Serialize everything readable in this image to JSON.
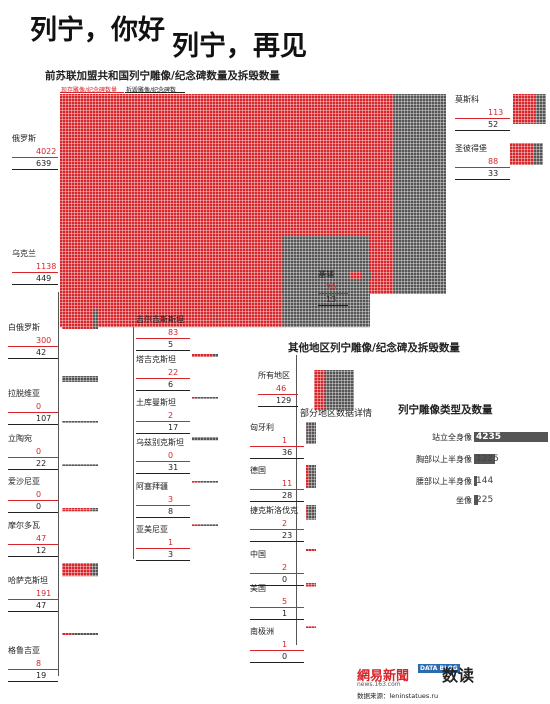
{
  "title": {
    "part1": "列宁，你好",
    "part2": "列宁，再见"
  },
  "section1": {
    "title": "前苏联加盟共和国列宁雕像/纪念碑数量及拆毁数量",
    "legend_present": "现存雕像/纪念碑数量",
    "legend_demolished": "拆毁雕像/纪念碑数",
    "colors": {
      "present": "#d6262b",
      "demolished": "#555555"
    }
  },
  "section2": {
    "title": "其他地区列宁雕像/纪念碑及拆毁数量",
    "detail_title": "部分地区数据详情"
  },
  "section3": {
    "title": "列宁雕像类型及数量"
  },
  "chart_data": [
    {
      "type": "bar",
      "title": "前苏联加盟共和国列宁雕像/纪念碑数量及拆毁数量",
      "series": [
        {
          "name": "现存雕像/纪念碑数量",
          "color": "#d6262b",
          "values": [
            4022,
            1138,
            300,
            0,
            0,
            0,
            47,
            191,
            8,
            83,
            22,
            2,
            0,
            3,
            1
          ]
        },
        {
          "name": "拆毁雕像/纪念碑数",
          "color": "#555555",
          "values": [
            639,
            449,
            42,
            107,
            22,
            0,
            12,
            47,
            19,
            5,
            6,
            17,
            31,
            8,
            3
          ]
        }
      ],
      "categories": [
        "俄罗斯",
        "乌克兰",
        "白俄罗斯",
        "拉脱维亚",
        "立陶宛",
        "爱沙尼亚",
        "摩尔多瓦",
        "哈萨克斯坦",
        "格鲁吉亚",
        "吉尔吉斯斯坦",
        "塔吉克斯坦",
        "土库曼斯坦",
        "乌兹别克斯坦",
        "阿塞拜疆",
        "亚美尼亚"
      ],
      "cities": [
        {
          "name": "莫斯科",
          "present": 113,
          "demolished": 52
        },
        {
          "name": "圣彼得堡",
          "present": 88,
          "demolished": 33
        },
        {
          "name": "基辅",
          "present": 20,
          "demolished": 13
        }
      ]
    },
    {
      "type": "bar",
      "title": "其他地区列宁雕像/纪念碑及拆毁数量",
      "total": {
        "name": "所有地区",
        "present": 46,
        "demolished": 129
      },
      "categories": [
        "匈牙利",
        "德国",
        "捷克斯洛伐克",
        "中国",
        "美国",
        "南极洲"
      ],
      "series": [
        {
          "name": "present",
          "values": [
            1,
            11,
            2,
            2,
            5,
            1
          ]
        },
        {
          "name": "demolished",
          "values": [
            36,
            28,
            23,
            0,
            1,
            0
          ]
        }
      ]
    },
    {
      "type": "bar",
      "title": "列宁雕像类型及数量",
      "categories": [
        "站立全身像",
        "胸部以上半身像",
        "腰部以上半身像",
        "坐像"
      ],
      "values": [
        4235,
        1225,
        144,
        225
      ]
    }
  ],
  "credits": {
    "brand": "網易新聞",
    "brand_url": "news.163.com",
    "datablog": "DATA BLOG",
    "shudu": "数读",
    "source": "数据来源：leninstatues.ru"
  }
}
